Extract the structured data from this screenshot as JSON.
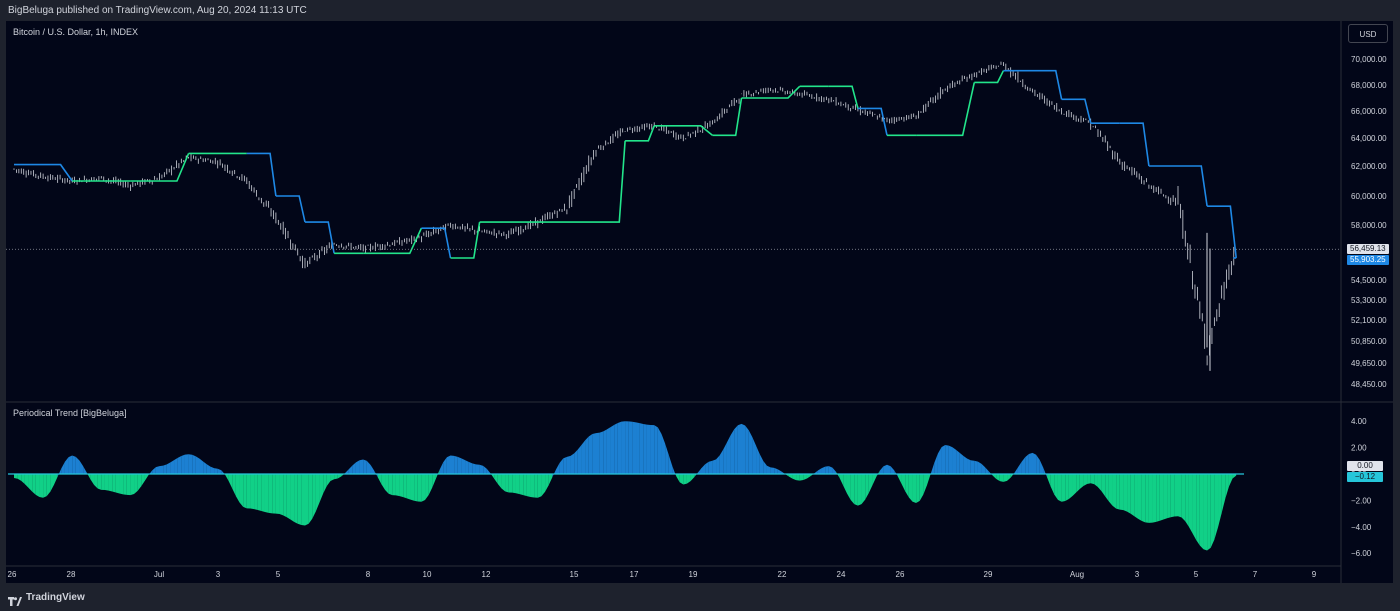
{
  "header": {
    "published_text": "BigBeluga published on TradingView.com, Aug 20, 2024 11:13 UTC"
  },
  "chart": {
    "symbol_title": "Bitcoin / U.S. Dollar, 1h, INDEX",
    "currency_button": "USD",
    "price_axis_labels": [
      "70,000.00",
      "68,000.00",
      "66,000.00",
      "64,000.00",
      "62,000.00",
      "60,000.00",
      "58,000.00",
      "54,500.00",
      "53,300.00",
      "52,100.00",
      "50,850.00",
      "49,650.00",
      "48,450.00"
    ],
    "last_price_label": "56,459.13",
    "trend_level_label": "55,903.25",
    "indicator_title": "Periodical Trend [BigBeluga]",
    "indicator_axis_labels": [
      "4.00",
      "2.00",
      "0.00",
      "−2.00",
      "−4.00",
      "−6.00"
    ],
    "indicator_zero_label": "0.00",
    "indicator_value_label": "−0.12",
    "time_axis_labels": [
      "26",
      "28",
      "Jul",
      "3",
      "5",
      "8",
      "10",
      "12",
      "15",
      "17",
      "19",
      "22",
      "24",
      "26",
      "29",
      "Aug",
      "3",
      "5",
      "7",
      "9"
    ]
  },
  "colors": {
    "background": "#020618",
    "frame": "#1e222d",
    "trend_up": "#22e58b",
    "trend_down": "#1e88e5",
    "candles": "#d1d4dc",
    "osc_positive": "#2196f3",
    "osc_negative": "#14f59b"
  },
  "footer": {
    "brand": "TradingView",
    "logo_icon": "tradingview-logo-icon"
  },
  "chart_data": {
    "type": "line",
    "title": "Bitcoin / U.S. Dollar, 1h, INDEX",
    "x_ticks": [
      "26",
      "28",
      "Jul",
      "3",
      "5",
      "8",
      "10",
      "12",
      "15",
      "17",
      "19",
      "22",
      "24",
      "26",
      "29",
      "Aug",
      "3",
      "5",
      "7",
      "9"
    ],
    "price_range": [
      48450,
      70000
    ],
    "last_price": 56459.13,
    "trend_level": 55903.25,
    "price_series": {
      "x": [
        "Jun 25",
        "Jun 26",
        "Jun 27",
        "Jun 28",
        "Jun 29",
        "Jun 30",
        "Jul 1",
        "Jul 2",
        "Jul 3",
        "Jul 4",
        "Jul 5",
        "Jul 6",
        "Jul 7",
        "Jul 8",
        "Jul 9",
        "Jul 10",
        "Jul 11",
        "Jul 12",
        "Jul 13",
        "Jul 14",
        "Jul 15",
        "Jul 16",
        "Jul 17",
        "Jul 18",
        "Jul 19",
        "Jul 20",
        "Jul 21",
        "Jul 22",
        "Jul 23",
        "Jul 24",
        "Jul 25",
        "Jul 26",
        "Jul 27",
        "Jul 28",
        "Jul 29",
        "Jul 30",
        "Jul 31",
        "Aug 1",
        "Aug 2",
        "Aug 3",
        "Aug 4",
        "Aug 5",
        "Aug 6"
      ],
      "y": [
        61800,
        61300,
        61000,
        61200,
        60700,
        61200,
        62600,
        62300,
        61000,
        58500,
        55500,
        56800,
        56500,
        56800,
        57200,
        58000,
        57600,
        57400,
        58200,
        59200,
        63100,
        64600,
        64900,
        64000,
        65100,
        67200,
        67700,
        67300,
        66900,
        66100,
        65300,
        65600,
        67700,
        68800,
        69600,
        67500,
        66000,
        65100,
        62300,
        60700,
        59500,
        50300,
        56459
      ]
    },
    "trend_line": {
      "x": [
        "Jun 25",
        "Jun 27",
        "Jun 29",
        "Jul 1",
        "Jul 3",
        "Jul 4",
        "Jul 5",
        "Jul 6",
        "Jul 7",
        "Jul 9",
        "Jul 10",
        "Jul 11",
        "Jul 15",
        "Jul 16",
        "Jul 17",
        "Jul 19",
        "Jul 20",
        "Jul 22",
        "Jul 23",
        "Jul 24",
        "Jul 25",
        "Jul 26",
        "Jul 28",
        "Jul 29",
        "Jul 30",
        "Jul 31",
        "Aug 1",
        "Aug 2",
        "Aug 3",
        "Aug 4",
        "Aug 5",
        "Aug 6"
      ],
      "y": [
        62100,
        61000,
        61000,
        62900,
        62900,
        60000,
        58200,
        56200,
        56200,
        57800,
        55900,
        58200,
        58200,
        63800,
        64900,
        64200,
        67000,
        67900,
        67900,
        66200,
        64200,
        64200,
        68200,
        69100,
        69100,
        66900,
        65100,
        65100,
        62000,
        62000,
        59300,
        55903
      ],
      "direction": [
        "down",
        "up",
        "up",
        "up",
        "down",
        "down",
        "down",
        "up",
        "up",
        "down",
        "up",
        "up",
        "up",
        "up",
        "up",
        "up",
        "up",
        "up",
        "up",
        "down",
        "up",
        "up",
        "up",
        "down",
        "down",
        "down",
        "down",
        "down",
        "down",
        "down",
        "down",
        "down"
      ]
    },
    "oscillator": {
      "name": "Periodical Trend [BigBeluga]",
      "ylim": [
        -6,
        4
      ],
      "x": [
        "Jun 25",
        "Jun 26",
        "Jun 27",
        "Jun 28",
        "Jun 29",
        "Jun 30",
        "Jul 1",
        "Jul 2",
        "Jul 3",
        "Jul 4",
        "Jul 5",
        "Jul 6",
        "Jul 7",
        "Jul 8",
        "Jul 9",
        "Jul 10",
        "Jul 11",
        "Jul 12",
        "Jul 13",
        "Jul 14",
        "Jul 15",
        "Jul 16",
        "Jul 17",
        "Jul 18",
        "Jul 19",
        "Jul 20",
        "Jul 21",
        "Jul 22",
        "Jul 23",
        "Jul 24",
        "Jul 25",
        "Jul 26",
        "Jul 27",
        "Jul 28",
        "Jul 29",
        "Jul 30",
        "Jul 31",
        "Aug 1",
        "Aug 2",
        "Aug 3",
        "Aug 4",
        "Aug 5",
        "Aug 6"
      ],
      "y": [
        -0.3,
        -1.8,
        1.4,
        -1.2,
        -1.6,
        0.6,
        1.5,
        0.4,
        -2.6,
        -3.0,
        -3.9,
        -0.4,
        1.1,
        -1.6,
        -2.1,
        1.4,
        0.7,
        -1.4,
        -1.8,
        1.3,
        3.1,
        4.0,
        3.7,
        -0.8,
        1.0,
        3.8,
        0.5,
        -0.5,
        0.6,
        -2.4,
        0.7,
        -2.2,
        2.2,
        1.0,
        -0.6,
        1.6,
        -2.1,
        -0.7,
        -2.7,
        -3.7,
        -3.2,
        -5.8,
        -0.12
      ]
    }
  }
}
